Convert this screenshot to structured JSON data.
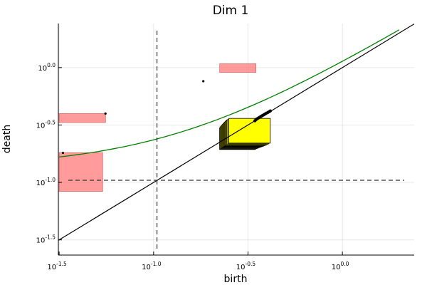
{
  "chart_data": {
    "type": "scatter",
    "title": "Dim 1",
    "xlabel": "birth",
    "ylabel": "death",
    "xscale": "log10",
    "yscale": "log10",
    "xlim": [
      0.0313,
      2.4
    ],
    "ylim": [
      0.0233,
      2.42
    ],
    "xticks": [
      {
        "value": 0.0316,
        "base": "10",
        "exp": "-1.5"
      },
      {
        "value": 0.1,
        "base": "10",
        "exp": "-1.0"
      },
      {
        "value": 0.3162,
        "base": "10",
        "exp": "-0.5"
      },
      {
        "value": 1.0,
        "base": "10",
        "exp": "0.0"
      }
    ],
    "yticks": [
      {
        "value": 0.0316,
        "base": "10",
        "exp": "-1.5"
      },
      {
        "value": 0.1,
        "base": "10",
        "exp": "-1.0"
      },
      {
        "value": 0.3162,
        "base": "10",
        "exp": "-0.5"
      },
      {
        "value": 1.0,
        "base": "10",
        "exp": "0.0"
      }
    ],
    "grid": true,
    "legend": "none",
    "colors": {
      "diagonal": "#000000",
      "curve": "#008000",
      "red_box_fill": "#ff6666",
      "red_box_stroke": "#cc4444",
      "yellow_box_fill": "#ffff00",
      "yellow_box_stroke": "#000000",
      "threshold": "#333333"
    },
    "diagonal": {
      "from": 0.0247,
      "to": 2.4
    },
    "thresholds": {
      "vertical_x": 0.1042,
      "horizontal_y": 0.1044
    },
    "curve": {
      "function": "death = birth + 0.135",
      "from": 0.0316,
      "to": 2.0
    },
    "red_points": [
      {
        "birth": 0.1834,
        "death": 0.7612,
        "box": {
          "x0": 0.2237,
          "x1": 0.3484,
          "y0": 0.9078,
          "y1": 1.0805
        }
      },
      {
        "birth": 0.0556,
        "death": 0.3981,
        "box": {
          "x0": 0.0316,
          "x1": 0.0557,
          "y0": 0.3321,
          "y1": 0.3981
        }
      },
      {
        "birth": 0.0331,
        "death": 0.1809,
        "box": {
          "x0": 0.0316,
          "x1": 0.0538,
          "y0": 0.0834,
          "y1": 0.1817
        }
      }
    ],
    "yellow_points": [
      {
        "birth": 0.3441,
        "death": 0.3446,
        "box": {
          "x0": 0.2237,
          "x1": 0.3441,
          "y0": 0.1936,
          "y1": 0.2985
        }
      },
      {
        "birth": 0.3484,
        "death": 0.352,
        "box": {
          "x0": 0.225,
          "x1": 0.3484,
          "y0": 0.195,
          "y1": 0.305
        }
      },
      {
        "birth": 0.353,
        "death": 0.358,
        "box": {
          "x0": 0.227,
          "x1": 0.353,
          "y0": 0.197,
          "y1": 0.31
        }
      },
      {
        "birth": 0.359,
        "death": 0.364,
        "box": {
          "x0": 0.229,
          "x1": 0.359,
          "y0": 0.199,
          "y1": 0.315
        }
      },
      {
        "birth": 0.365,
        "death": 0.37,
        "box": {
          "x0": 0.231,
          "x1": 0.365,
          "y0": 0.201,
          "y1": 0.32
        }
      },
      {
        "birth": 0.371,
        "death": 0.376,
        "box": {
          "x0": 0.233,
          "x1": 0.371,
          "y0": 0.203,
          "y1": 0.325
        }
      },
      {
        "birth": 0.377,
        "death": 0.382,
        "box": {
          "x0": 0.235,
          "x1": 0.377,
          "y0": 0.205,
          "y1": 0.33
        }
      },
      {
        "birth": 0.383,
        "death": 0.388,
        "box": {
          "x0": 0.237,
          "x1": 0.383,
          "y0": 0.207,
          "y1": 0.335
        }
      },
      {
        "birth": 0.389,
        "death": 0.394,
        "box": {
          "x0": 0.239,
          "x1": 0.389,
          "y0": 0.209,
          "y1": 0.34
        }
      },
      {
        "birth": 0.395,
        "death": 0.4,
        "box": {
          "x0": 0.241,
          "x1": 0.395,
          "y0": 0.211,
          "y1": 0.345
        }
      },
      {
        "birth": 0.402,
        "death": 0.406,
        "box": {
          "x0": 0.244,
          "x1": 0.402,
          "y0": 0.214,
          "y1": 0.35
        }
      },
      {
        "birth": 0.408,
        "death": 0.412,
        "box": {
          "x0": 0.247,
          "x1": 0.408,
          "y0": 0.217,
          "y1": 0.355
        }
      },
      {
        "birth": 0.415,
        "death": 0.419,
        "box": {
          "x0": 0.25,
          "x1": 0.415,
          "y0": 0.22,
          "y1": 0.361
        }
      }
    ]
  }
}
